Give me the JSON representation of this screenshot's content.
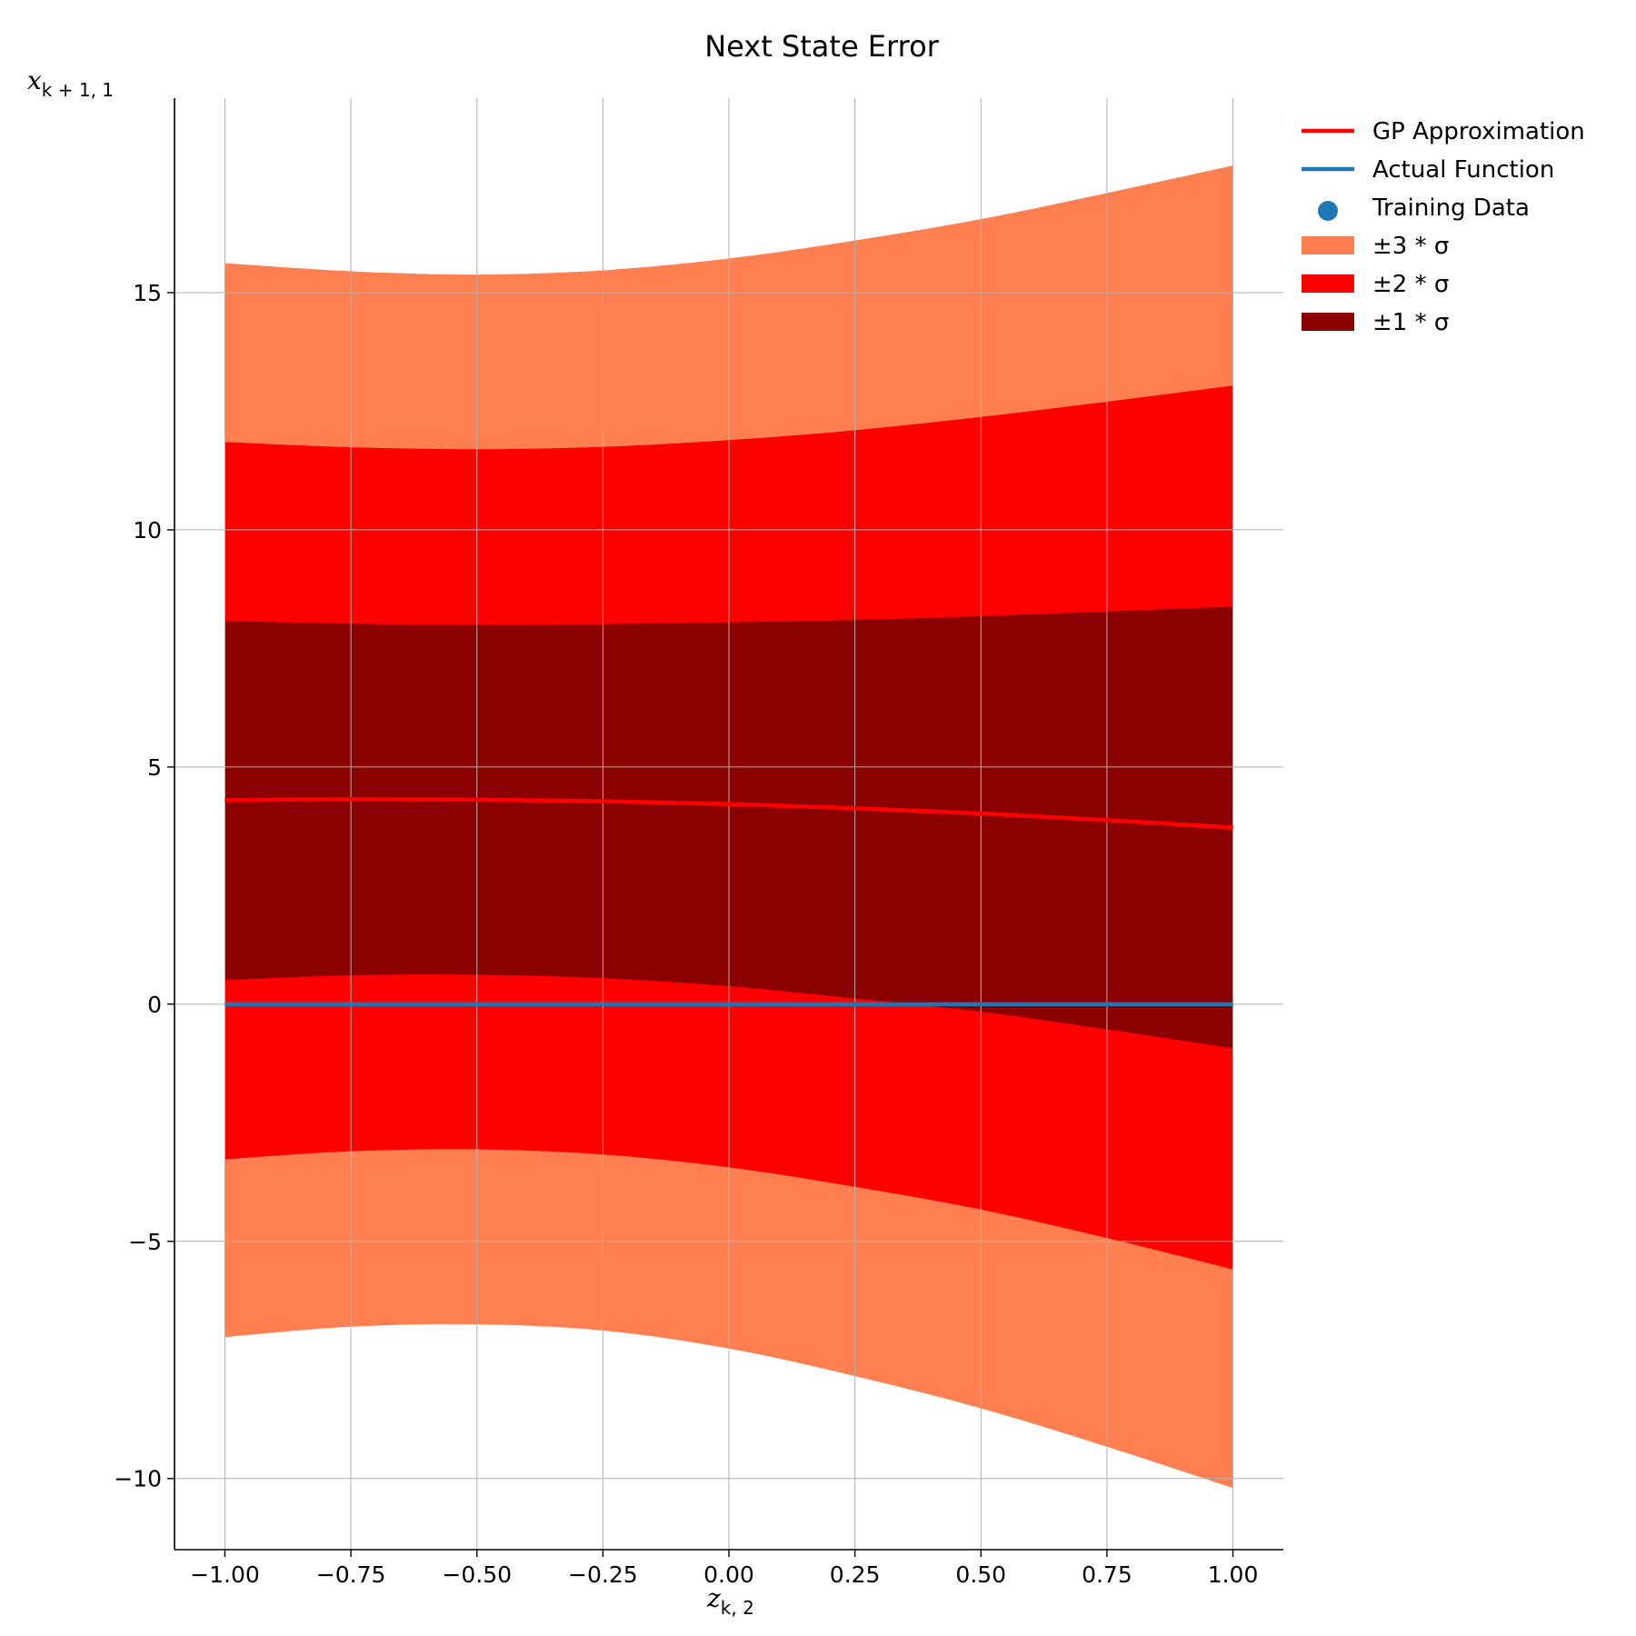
{
  "chart_data": {
    "type": "area",
    "title": "Next State Error",
    "xlabel": {
      "base": "z",
      "sub": "k, 2"
    },
    "ylabel": {
      "base": "x",
      "sub": "k + 1, 1"
    },
    "xlim": [
      -1.1,
      1.1
    ],
    "ylim": [
      -11.5,
      19.1
    ],
    "xticks": [
      -1.0,
      -0.75,
      -0.5,
      -0.25,
      0.0,
      0.25,
      0.5,
      0.75,
      1.0
    ],
    "xtick_labels": [
      "−1.00",
      "−0.75",
      "−0.50",
      "−0.25",
      "0.00",
      "0.25",
      "0.50",
      "0.75",
      "1.00"
    ],
    "yticks": [
      -10,
      -5,
      0,
      5,
      10,
      15
    ],
    "ytick_labels": [
      "−10",
      "−5",
      "0",
      "5",
      "10",
      "15"
    ],
    "grid": true,
    "legend_position": "top-right, outside plot",
    "x": [
      -1.0,
      -0.75,
      -0.5,
      -0.25,
      0.0,
      0.25,
      0.5,
      0.75,
      1.0
    ],
    "series": [
      {
        "name": "GP Approximation",
        "kind": "line",
        "color": "#ff0000",
        "values": [
          4.3,
          4.32,
          4.31,
          4.28,
          4.22,
          4.13,
          4.02,
          3.88,
          3.72
        ]
      },
      {
        "name": "Actual Function",
        "kind": "line",
        "color": "#1f77b4",
        "values": [
          0,
          0,
          0,
          0,
          0,
          0,
          0,
          0,
          0
        ]
      },
      {
        "name": "Training Data",
        "kind": "scatter",
        "color": "#1f77b4",
        "points": []
      }
    ],
    "bands": [
      {
        "name": "±3 * σ",
        "color": "#ff7f50",
        "upper": [
          15.62,
          15.45,
          15.38,
          15.47,
          15.72,
          16.1,
          16.55,
          17.1,
          17.68
        ],
        "lower": [
          -7.02,
          -6.8,
          -6.75,
          -6.88,
          -7.26,
          -7.84,
          -8.52,
          -9.33,
          -10.2
        ]
      },
      {
        "name": "±2 * σ",
        "color": "#ff0000",
        "upper": [
          11.85,
          11.74,
          11.7,
          11.75,
          11.89,
          12.1,
          12.38,
          12.7,
          13.04
        ],
        "lower": [
          -3.27,
          -3.1,
          -3.06,
          -3.17,
          -3.44,
          -3.85,
          -4.33,
          -4.93,
          -5.59
        ]
      },
      {
        "name": "±1 * σ",
        "color": "#8b0000",
        "upper": [
          8.08,
          8.02,
          8.0,
          8.01,
          8.05,
          8.1,
          8.18,
          8.28,
          8.38
        ],
        "lower": [
          0.51,
          0.61,
          0.62,
          0.55,
          0.38,
          0.12,
          -0.16,
          -0.53,
          -0.93
        ]
      }
    ]
  }
}
